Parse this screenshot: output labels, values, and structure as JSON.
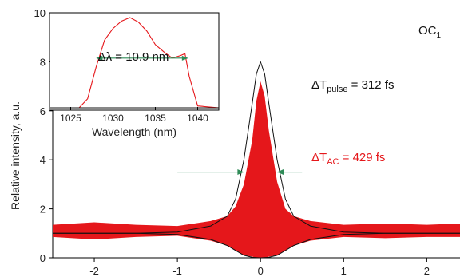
{
  "chart_data": [
    {
      "type": "line",
      "role": "main",
      "ylabel": "Relative intensity, a.u.",
      "xlim": [
        -2.5,
        2.4
      ],
      "ylim": [
        0,
        10
      ],
      "xticks": [
        "-2",
        "-1",
        "0",
        "1",
        "2"
      ],
      "yticks": [
        "0",
        "2",
        "4",
        "6",
        "8",
        "10"
      ],
      "label_oc": "OC",
      "label_oc_sub": "1",
      "pulse_label": "ΔT",
      "pulse_label_sub": "pulse",
      "pulse_value": " = 312 fs",
      "ac_label": "ΔT",
      "ac_label_sub": "AC",
      "ac_value": " = 429 fs",
      "colors": {
        "measured": "#e5171b",
        "fit": "#111111",
        "arrow": "#2e8b57"
      },
      "series": [
        {
          "role": "measured-autocorrelation",
          "x": [
            -2.5,
            -2.0,
            -1.5,
            -1.0,
            -0.6,
            -0.4,
            -0.3,
            -0.2,
            -0.1,
            -0.05,
            0.0,
            0.05,
            0.1,
            0.2,
            0.3,
            0.4,
            0.6,
            1.0,
            1.5,
            2.0,
            2.4
          ],
          "upper": [
            1.35,
            1.45,
            1.35,
            1.3,
            1.5,
            1.7,
            2.1,
            3.0,
            4.8,
            6.4,
            7.2,
            6.6,
            5.2,
            3.1,
            2.0,
            1.7,
            1.5,
            1.35,
            1.4,
            1.35,
            1.4
          ],
          "lower": [
            0.85,
            0.75,
            0.85,
            0.9,
            0.7,
            0.5,
            0.3,
            0.1,
            0.05,
            0.0,
            0.0,
            0.0,
            0.05,
            0.1,
            0.3,
            0.5,
            0.7,
            0.85,
            0.8,
            0.85,
            0.85
          ]
        },
        {
          "role": "fit-upper",
          "x": [
            -2.5,
            -2.0,
            -1.5,
            -1.0,
            -0.6,
            -0.4,
            -0.3,
            -0.2,
            -0.1,
            -0.05,
            0.0,
            0.05,
            0.1,
            0.2,
            0.3,
            0.4,
            0.6,
            1.0,
            1.5,
            2.0,
            2.4
          ],
          "y": [
            1.0,
            1.0,
            1.0,
            1.05,
            1.3,
            1.7,
            2.4,
            4.0,
            6.3,
            7.5,
            8.0,
            7.5,
            6.3,
            4.0,
            2.4,
            1.7,
            1.3,
            1.05,
            1.0,
            1.0,
            1.0
          ]
        },
        {
          "role": "fit-lower",
          "x": [
            -2.5,
            -2.0,
            -1.5,
            -1.0,
            -0.6,
            -0.4,
            -0.3,
            -0.2,
            -0.1,
            0.0,
            0.1,
            0.2,
            0.3,
            0.4,
            0.6,
            1.0,
            1.5,
            2.0,
            2.4
          ],
          "y": [
            1.0,
            1.0,
            1.0,
            0.95,
            0.75,
            0.5,
            0.3,
            0.1,
            0.02,
            0.0,
            0.02,
            0.1,
            0.3,
            0.5,
            0.75,
            0.95,
            1.0,
            1.0,
            1.0
          ]
        }
      ],
      "arrows": {
        "y": 3.5,
        "left_from": -1.0,
        "left_to": -0.2,
        "right_from": 0.5,
        "right_to": 0.2
      }
    },
    {
      "type": "line",
      "role": "inset-spectrum",
      "xlabel": "Wavelength (nm)",
      "xticks": [
        "1025",
        "1030",
        "1035",
        "1040"
      ],
      "xlim": [
        1022.5,
        1042.5
      ],
      "ylim": [
        0,
        1
      ],
      "bandwidth_label": "Δλ = 10.9 nm",
      "bandwidth_from": 1028.0,
      "bandwidth_to": 1038.9,
      "bandwidth_level": 0.55,
      "series": [
        {
          "role": "spectrum",
          "color": "#e5171b",
          "x": [
            1022.5,
            1026.0,
            1027.0,
            1028.0,
            1029.0,
            1030.0,
            1031.0,
            1032.0,
            1033.0,
            1034.0,
            1035.0,
            1036.0,
            1037.0,
            1038.0,
            1038.5,
            1039.0,
            1040.0,
            1042.5
          ],
          "y": [
            0.0,
            0.0,
            0.1,
            0.45,
            0.75,
            0.88,
            0.96,
            1.0,
            0.95,
            0.85,
            0.7,
            0.62,
            0.55,
            0.58,
            0.6,
            0.35,
            0.02,
            0.0
          ]
        },
        {
          "role": "baseline",
          "color": "#111111",
          "x": [
            1022.5,
            1042.5
          ],
          "y": [
            0.0,
            0.0
          ]
        }
      ]
    }
  ]
}
